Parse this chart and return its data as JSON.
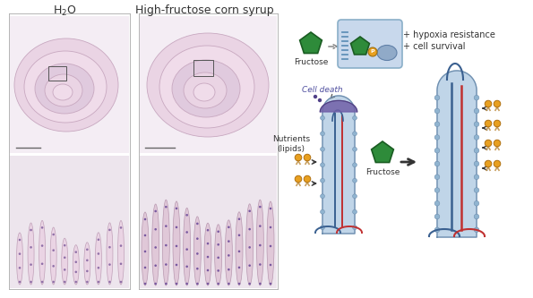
{
  "bg_color": "#ffffff",
  "left_title": "H₂O",
  "right_title": "High-fructose corn syrup",
  "top_right_text1": "+ hypoxia resistance",
  "top_right_text2": "+ cell survival",
  "fructose_label": "Fructose",
  "cell_death_label": "Cell death",
  "nutrients_label": "Nutrients\n(lipids)",
  "arrow_label": "Fructose",
  "pentagon_color": "#2e8b3a",
  "pentagon_dark": "#1a5c22",
  "cell_color": "#b8cfe8",
  "cell_border": "#7a9ab8",
  "nucleus_color": "#90aac8",
  "p_marker_color": "#e8a020",
  "lipid_color": "#e8a020",
  "lipid_tail_color": "#c8a060",
  "vessel_blue": "#3a6090",
  "vessel_red": "#c03030",
  "dead_cell_color": "#6a5a8a",
  "arrow_color": "#333333",
  "text_color": "#333333",
  "dashed_color": "#888888",
  "box_bg": "#c8d8ec",
  "box_border": "#8aafc8",
  "villi_face": "#c0d5e8",
  "villi_border": "#7090b0",
  "dot_face": "#90b4d0"
}
